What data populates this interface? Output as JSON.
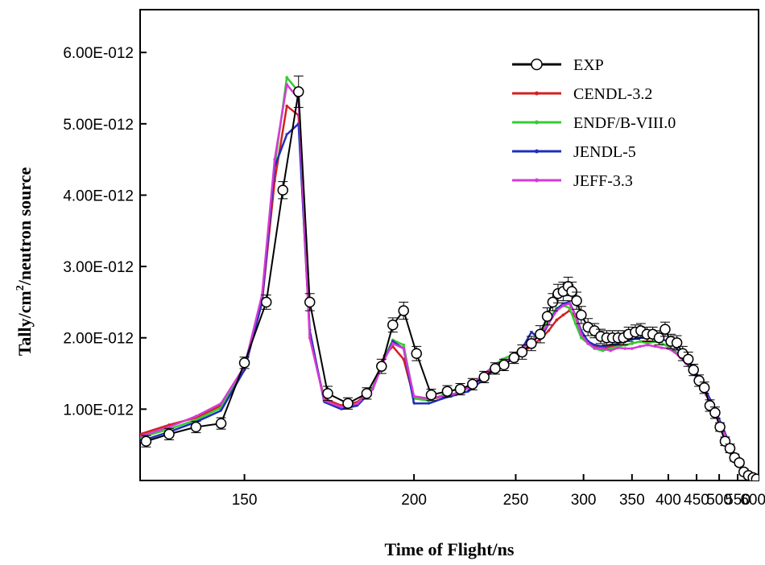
{
  "chart_data": {
    "type": "line",
    "title": "",
    "xlabel": "Time of Flight/ns",
    "ylabel_parts": [
      "Tally/cm",
      "2",
      "/neutron source"
    ],
    "x_scale": "reciprocal",
    "xlim": [
      130,
      620
    ],
    "ylim": [
      0,
      6.6e-12
    ],
    "x_ticks": [
      150,
      200,
      250,
      300,
      350,
      400,
      450,
      500,
      550,
      600
    ],
    "x_tick_labels": [
      "150",
      "200",
      "250",
      "300",
      "350",
      "400",
      "450",
      "500",
      "550",
      "600"
    ],
    "y_ticks": [
      1e-12,
      2e-12,
      3e-12,
      4e-12,
      5e-12,
      6e-12
    ],
    "y_tick_labels": [
      "1.00E-012",
      "2.00E-012",
      "3.00E-012",
      "4.00E-012",
      "5.00E-012",
      "6.00E-012"
    ],
    "legend_position": "top-right",
    "series": [
      {
        "name": "EXP",
        "color": "#000000",
        "marker": "circle",
        "x": [
          131,
          135,
          140,
          145,
          150,
          155,
          159,
          163,
          166,
          171,
          177,
          183,
          188,
          192,
          196,
          201,
          207,
          214,
          220,
          226,
          232,
          238,
          243,
          249,
          254,
          260,
          266,
          271,
          275,
          279,
          283,
          287,
          290,
          294,
          298,
          304,
          310,
          316,
          322,
          328,
          334,
          340,
          346,
          354,
          361,
          369,
          377,
          386,
          395,
          404,
          414,
          424,
          434,
          444,
          455,
          466,
          478,
          490,
          502,
          515,
          528,
          541,
          555,
          569,
          584,
          600,
          612
        ],
        "y": [
          5.5e-13,
          6.5e-13,
          7.5e-13,
          8e-13,
          1.65e-12,
          2.5e-12,
          4.07e-12,
          5.45e-12,
          2.5e-12,
          1.22e-12,
          1.08e-12,
          1.22e-12,
          1.6e-12,
          2.18e-12,
          2.38e-12,
          1.78e-12,
          1.2e-12,
          1.25e-12,
          1.28e-12,
          1.35e-12,
          1.45e-12,
          1.57e-12,
          1.62e-12,
          1.72e-12,
          1.8e-12,
          1.92e-12,
          2.05e-12,
          2.3e-12,
          2.5e-12,
          2.62e-12,
          2.65e-12,
          2.72e-12,
          2.65e-12,
          2.52e-12,
          2.32e-12,
          2.15e-12,
          2.1e-12,
          2.02e-12,
          2e-12,
          2e-12,
          2e-12,
          2e-12,
          2.05e-12,
          2.08e-12,
          2.1e-12,
          2.05e-12,
          2.05e-12,
          2e-12,
          2.12e-12,
          1.95e-12,
          1.93e-12,
          1.78e-12,
          1.7e-12,
          1.55e-12,
          1.4e-12,
          1.3e-12,
          1.05e-12,
          9.5e-13,
          7.5e-13,
          5.5e-13,
          4.5e-13,
          3.2e-13,
          2.5e-13,
          1.2e-13,
          7e-14,
          4e-14,
          2e-14
        ],
        "err": [
          8e-14,
          8e-14,
          8e-14,
          8e-14,
          8e-14,
          1e-13,
          1.2e-13,
          2.2e-13,
          1.2e-13,
          1e-13,
          8e-14,
          8e-14,
          1e-13,
          1e-13,
          1.2e-13,
          1e-13,
          8e-14,
          8e-14,
          8e-14,
          8e-14,
          8e-14,
          8e-14,
          8e-14,
          8e-14,
          1e-13,
          1e-13,
          1.2e-13,
          1.2e-13,
          1.2e-13,
          1.3e-13,
          1.3e-13,
          1.3e-13,
          1.3e-13,
          1.2e-13,
          1.2e-13,
          1.2e-13,
          1e-13,
          1e-13,
          1e-13,
          1e-13,
          1e-13,
          1e-13,
          1e-13,
          1e-13,
          1e-13,
          1e-13,
          1e-13,
          1e-13,
          1e-13,
          1e-13,
          1e-13,
          1e-13,
          1e-13,
          8e-14,
          8e-14,
          8e-14,
          8e-14,
          8e-14,
          6e-14,
          6e-14,
          6e-14,
          5e-14,
          4e-14,
          4e-14,
          4e-14,
          3e-14,
          3e-14
        ]
      },
      {
        "name": "CENDL-3.2",
        "color": "#d42020",
        "marker": "dot",
        "x": [
          130,
          135,
          140,
          145,
          150,
          154,
          157,
          160,
          163,
          166,
          170,
          175,
          180,
          185,
          189,
          192,
          196,
          200,
          206,
          212,
          218,
          224,
          230,
          236,
          242,
          248,
          254,
          260,
          266,
          272,
          278,
          283,
          288,
          293,
          298,
          304,
          310,
          318,
          326,
          334,
          342,
          350,
          360,
          370,
          380,
          390,
          400,
          410,
          420,
          430,
          440,
          450,
          460,
          470,
          480,
          490,
          500,
          510,
          520,
          530,
          540,
          550,
          560,
          570,
          580,
          590,
          600,
          610,
          620
        ],
        "y": [
          6.5e-13,
          7.8e-13,
          8.8e-13,
          1.05e-12,
          1.55e-12,
          2.5e-12,
          4.2e-12,
          5.25e-12,
          5.12e-12,
          2e-12,
          1.15e-12,
          1.05e-12,
          1.1e-12,
          1.3e-12,
          1.75e-12,
          1.88e-12,
          1.7e-12,
          1.15e-12,
          1.13e-12,
          1.18e-12,
          1.22e-12,
          1.3e-12,
          1.42e-12,
          1.55e-12,
          1.65e-12,
          1.72e-12,
          1.8e-12,
          1.88e-12,
          1.98e-12,
          2.1e-12,
          2.25e-12,
          2.32e-12,
          2.38e-12,
          2.3e-12,
          2.05e-12,
          1.92e-12,
          1.88e-12,
          1.85e-12,
          1.88e-12,
          1.9e-12,
          1.9e-12,
          1.92e-12,
          1.95e-12,
          1.95e-12,
          1.95e-12,
          1.92e-12,
          1.88e-12,
          1.82e-12,
          1.75e-12,
          1.65e-12,
          1.55e-12,
          1.45e-12,
          1.32e-12,
          1.2e-12,
          1.08e-12,
          9.5e-13,
          8.2e-13,
          7e-13,
          5.8e-13,
          4.6e-13,
          3.6e-13,
          2.8e-13,
          2e-13,
          1.4e-13,
          9e-14,
          6e-14,
          4e-14,
          2e-14,
          1e-14
        ]
      },
      {
        "name": "ENDF/B-VIII.0",
        "color": "#33cc33",
        "marker": "dot",
        "x": [
          130,
          135,
          140,
          145,
          150,
          154,
          157,
          160,
          163,
          166,
          170,
          175,
          180,
          185,
          189,
          192,
          196,
          200,
          206,
          212,
          218,
          224,
          230,
          236,
          242,
          248,
          254,
          260,
          266,
          272,
          278,
          283,
          288,
          293,
          298,
          304,
          310,
          318,
          326,
          334,
          342,
          350,
          360,
          370,
          380,
          390,
          400,
          410,
          420,
          430,
          440,
          450,
          460,
          470,
          480,
          490,
          500,
          510,
          520,
          530,
          540,
          550,
          560,
          570,
          580,
          590,
          600,
          610,
          620
        ],
        "y": [
          6e-13,
          7.2e-13,
          8.5e-13,
          1.02e-12,
          1.58e-12,
          2.55e-12,
          4.4e-12,
          5.65e-12,
          5.45e-12,
          2.05e-12,
          1.12e-12,
          1.02e-12,
          1.08e-12,
          1.3e-12,
          1.72e-12,
          1.97e-12,
          1.9e-12,
          1.15e-12,
          1.12e-12,
          1.2e-12,
          1.28e-12,
          1.3e-12,
          1.45e-12,
          1.58e-12,
          1.7e-12,
          1.76e-12,
          1.85e-12,
          1.95e-12,
          2.1e-12,
          2.25e-12,
          2.42e-12,
          2.45e-12,
          2.42e-12,
          2.2e-12,
          2e-12,
          1.92e-12,
          1.85e-12,
          1.82e-12,
          1.85e-12,
          1.88e-12,
          1.9e-12,
          1.92e-12,
          1.95e-12,
          1.92e-12,
          1.95e-12,
          1.92e-12,
          1.88e-12,
          1.82e-12,
          1.75e-12,
          1.66e-12,
          1.56e-12,
          1.45e-12,
          1.33e-12,
          1.2e-12,
          1.08e-12,
          9.5e-13,
          8.2e-13,
          7e-13,
          5.8e-13,
          4.6e-13,
          3.6e-13,
          2.8e-13,
          2e-13,
          1.4e-13,
          9e-14,
          6e-14,
          4e-14,
          2e-14,
          1e-14
        ]
      },
      {
        "name": "JENDL-5",
        "color": "#1f2fb8",
        "marker": "triangle",
        "x": [
          130,
          135,
          140,
          145,
          150,
          154,
          157,
          160,
          163,
          166,
          170,
          175,
          180,
          185,
          189,
          192,
          196,
          200,
          206,
          212,
          218,
          224,
          230,
          236,
          242,
          248,
          254,
          260,
          266,
          272,
          278,
          283,
          288,
          293,
          298,
          304,
          310,
          318,
          326,
          334,
          342,
          350,
          360,
          370,
          380,
          390,
          400,
          410,
          420,
          430,
          440,
          450,
          460,
          470,
          480,
          490,
          500,
          510,
          520,
          530,
          540,
          550,
          560,
          570,
          580,
          590,
          600,
          610,
          620
        ],
        "y": [
          5.5e-13,
          6.8e-13,
          8.2e-13,
          9.8e-13,
          1.55e-12,
          2.5e-12,
          4.4e-12,
          4.85e-12,
          5e-12,
          2.1e-12,
          1.1e-12,
          1e-12,
          1.05e-12,
          1.28e-12,
          1.7e-12,
          1.95e-12,
          1.85e-12,
          1.08e-12,
          1.08e-12,
          1.15e-12,
          1.2e-12,
          1.25e-12,
          1.38e-12,
          1.52e-12,
          1.62e-12,
          1.72e-12,
          1.85e-12,
          2.08e-12,
          1.98e-12,
          2.2e-12,
          2.4e-12,
          2.48e-12,
          2.5e-12,
          2.32e-12,
          2.1e-12,
          1.95e-12,
          1.9e-12,
          1.88e-12,
          1.9e-12,
          1.92e-12,
          1.95e-12,
          1.98e-12,
          2e-12,
          2e-12,
          2e-12,
          1.98e-12,
          1.95e-12,
          1.88e-12,
          1.8e-12,
          1.7e-12,
          1.6e-12,
          1.5e-12,
          1.38e-12,
          1.25e-12,
          1.12e-12,
          1e-12,
          8.6e-13,
          7.3e-13,
          6e-13,
          4.8e-13,
          3.7e-13,
          2.8e-13,
          2e-13,
          1.4e-13,
          9e-14,
          6e-14,
          4e-14,
          2e-14,
          1e-14
        ]
      },
      {
        "name": "JEFF-3.3",
        "color": "#d63ad6",
        "marker": "dot",
        "x": [
          130,
          135,
          140,
          145,
          150,
          154,
          157,
          160,
          163,
          166,
          170,
          175,
          180,
          185,
          189,
          192,
          196,
          200,
          206,
          212,
          218,
          224,
          230,
          236,
          242,
          248,
          254,
          260,
          266,
          272,
          278,
          283,
          288,
          293,
          298,
          304,
          310,
          318,
          326,
          334,
          342,
          350,
          360,
          370,
          380,
          390,
          400,
          410,
          420,
          430,
          440,
          450,
          460,
          470,
          480,
          490,
          500,
          510,
          520,
          530,
          540,
          550,
          560,
          570,
          580,
          590,
          600,
          610,
          620
        ],
        "y": [
          6.2e-13,
          7.5e-13,
          9e-13,
          1.08e-12,
          1.6e-12,
          2.6e-12,
          4.5e-12,
          5.55e-12,
          5.35e-12,
          2e-12,
          1.12e-12,
          1.03e-12,
          1.08e-12,
          1.28e-12,
          1.7e-12,
          1.92e-12,
          1.85e-12,
          1.18e-12,
          1.15e-12,
          1.18e-12,
          1.22e-12,
          1.3e-12,
          1.45e-12,
          1.58e-12,
          1.66e-12,
          1.72e-12,
          1.85e-12,
          1.95e-12,
          2.05e-12,
          2.2e-12,
          2.38e-12,
          2.45e-12,
          2.48e-12,
          2.32e-12,
          2.05e-12,
          1.92e-12,
          1.86e-12,
          1.85e-12,
          1.82e-12,
          1.86e-12,
          1.85e-12,
          1.85e-12,
          1.88e-12,
          1.9e-12,
          1.88e-12,
          1.86e-12,
          1.85e-12,
          1.8e-12,
          1.72e-12,
          1.64e-12,
          1.55e-12,
          1.44e-12,
          1.32e-12,
          1.2e-12,
          1.08e-12,
          9.5e-13,
          8.2e-13,
          7e-13,
          5.8e-13,
          4.6e-13,
          3.6e-13,
          2.8e-13,
          2e-13,
          1.4e-13,
          9e-14,
          6e-14,
          4e-14,
          2e-14,
          1e-14
        ]
      }
    ]
  }
}
